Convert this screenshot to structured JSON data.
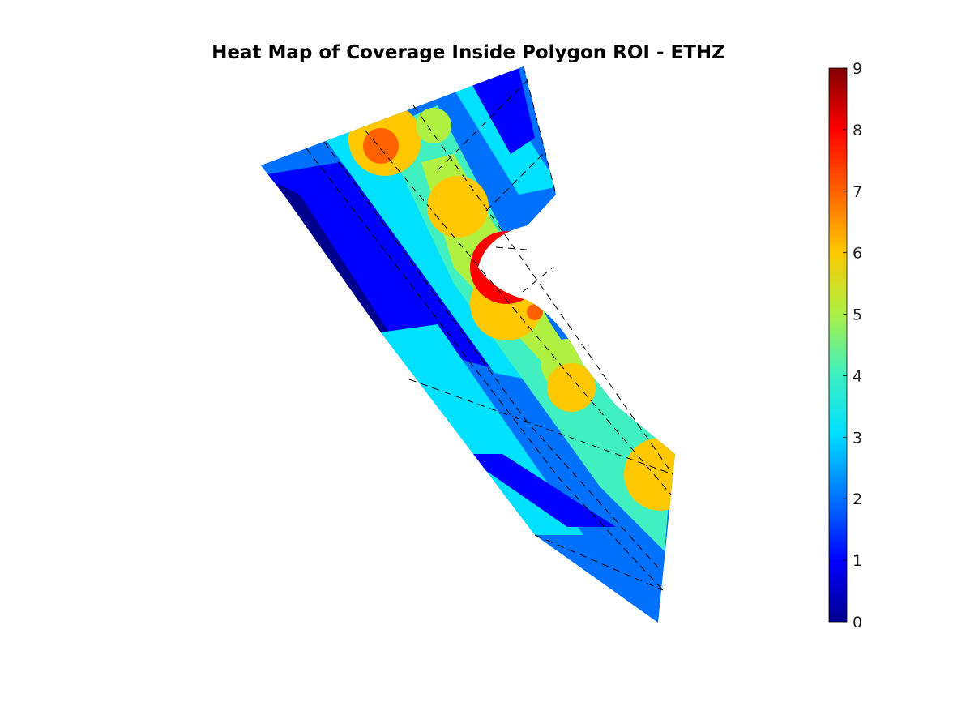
{
  "title": "Heat Map of Coverage Inside Polygon ROI - ETHZ",
  "chart_data": {
    "type": "heatmap",
    "title": "Heat Map of Coverage Inside Polygon ROI - ETHZ",
    "xlabel": "",
    "ylabel": "",
    "colormap": "jet",
    "clim": [
      0,
      9
    ],
    "colorbar": {
      "ticks": [
        "0",
        "1",
        "2",
        "3",
        "4",
        "5",
        "6",
        "7",
        "8",
        "9"
      ],
      "position": "right"
    },
    "axes_visible": false,
    "region": "polygon ROI",
    "coverage_levels_observed": [
      0,
      1,
      2,
      3,
      4,
      5,
      6,
      7,
      8,
      9
    ],
    "dashed_paths": "black dashed flight lines crossing the ROI",
    "colors": {
      "c0": "#00008f",
      "c1": "#0000ff",
      "c2": "#0070ff",
      "c3": "#00e0ff",
      "c4": "#40f0c0",
      "c5": "#b0f040",
      "c6": "#ffc800",
      "c7": "#ff6000",
      "c8": "#ff0000",
      "c9": "#800000"
    }
  }
}
